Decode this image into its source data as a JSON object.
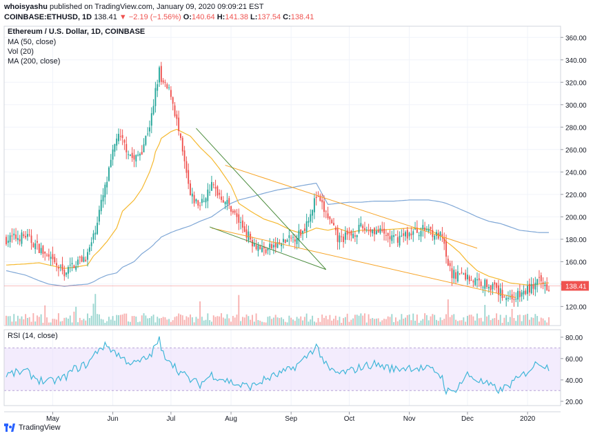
{
  "header": {
    "publisher": "whoisyashu",
    "published_text": "published on TradingView.com, January 09, 2020 09:09:21 EST",
    "symbol": "COINBASE:ETHUSD, 1D",
    "last": "138.41",
    "change": "−2.19 (−1.56%)",
    "open_label": "O:",
    "open": "140.64",
    "high_label": "H:",
    "high": "141.38",
    "low_label": "L:",
    "low": "137.54",
    "close_label": "C:",
    "close": "138.41"
  },
  "legend": {
    "title": "Ethereum / U.S. Dollar, 1D, COINBASE",
    "ma50": "MA (50, close)",
    "vol": "Vol (20)",
    "ma200": "MA (200, close)",
    "rsi": "RSI (14, close)"
  },
  "brand": "TradingView",
  "colors": {
    "up": "#26a69a",
    "down": "#ef5350",
    "ma50": "#f5b82e",
    "ma200": "#7fa7d6",
    "rsi_line": "#3fb6d8",
    "rsi_band": "#e9dcfb",
    "channel": "#f7a325",
    "wedge": "#4a8b3b"
  },
  "chart_data": {
    "type": "candlestick",
    "title": "Ethereum / U.S. Dollar, 1D, COINBASE",
    "x_ticks": [
      "May",
      "Jun",
      "Jul",
      "Aug",
      "Sep",
      "Oct",
      "Nov",
      "Dec",
      "2020"
    ],
    "x_tick_day_index": [
      24,
      55,
      85,
      116,
      147,
      177,
      208,
      238,
      269
    ],
    "price_axis": {
      "ylim": [
        103,
        370
      ],
      "ticks": [
        "120.00",
        "140.00",
        "160.00",
        "180.00",
        "200.00",
        "220.00",
        "240.00",
        "260.00",
        "280.00",
        "300.00",
        "320.00",
        "340.00",
        "360.00"
      ]
    },
    "rsi_axis": {
      "ylim": [
        16,
        87
      ],
      "ticks": [
        "20.00",
        "40.00",
        "60.00",
        "80.00"
      ],
      "band": [
        30,
        70
      ]
    },
    "last_price_label": "138.41",
    "anchors": {
      "day_index": [
        0,
        10,
        17,
        22,
        30,
        35,
        42,
        45,
        48,
        52,
        57,
        60,
        66,
        70,
        74,
        76,
        77,
        79,
        80,
        85,
        88,
        95,
        100,
        106,
        110,
        116,
        120,
        127,
        133,
        140,
        147,
        153,
        160,
        166,
        171,
        177,
        183,
        190,
        200,
        208,
        218,
        222,
        225,
        227,
        230,
        234,
        238,
        243,
        249,
        255,
        260,
        265,
        270,
        275,
        279
      ],
      "close": [
        180,
        183,
        172,
        162,
        150,
        158,
        166,
        182,
        205,
        232,
        272,
        267,
        250,
        260,
        282,
        297,
        312,
        330,
        320,
        310,
        285,
        218,
        210,
        228,
        220,
        208,
        196,
        178,
        170,
        175,
        180,
        187,
        218,
        200,
        180,
        183,
        190,
        188,
        180,
        185,
        190,
        183,
        182,
        162,
        148,
        150,
        146,
        142,
        140,
        132,
        128,
        130,
        136,
        142,
        138.41
      ],
      "ma50": [
        157,
        158,
        159,
        157,
        154,
        155,
        157,
        165,
        170,
        178,
        190,
        205,
        215,
        225,
        240,
        250,
        258,
        265,
        270,
        276,
        278,
        272,
        262,
        252,
        243,
        228,
        212,
        204,
        198,
        194,
        188,
        185,
        190,
        188,
        190,
        186,
        188,
        188,
        189,
        190,
        189,
        185,
        182,
        178,
        174,
        168,
        160,
        152,
        147,
        144,
        141,
        140,
        139,
        140,
        141
      ],
      "ma200": [
        152,
        148,
        143,
        140,
        138,
        139,
        140,
        142,
        145,
        148,
        150,
        155,
        160,
        167,
        172,
        175,
        177,
        180,
        182,
        186,
        188,
        192,
        196,
        200,
        205,
        212,
        215,
        218,
        221,
        224,
        226,
        228,
        230,
        211,
        212,
        213,
        213,
        214,
        214,
        215,
        215,
        214,
        213,
        212,
        210,
        207,
        204,
        200,
        196,
        194,
        191,
        188,
        187,
        186,
        186
      ],
      "rsi": [
        45,
        48,
        40,
        38,
        42,
        50,
        55,
        62,
        70,
        72,
        65,
        60,
        55,
        58,
        62,
        68,
        72,
        78,
        66,
        58,
        50,
        40,
        36,
        45,
        42,
        38,
        35,
        34,
        40,
        45,
        50,
        58,
        72,
        50,
        46,
        48,
        52,
        55,
        50,
        52,
        50,
        48,
        42,
        30,
        28,
        36,
        45,
        40,
        35,
        30,
        36,
        42,
        50,
        57,
        52
      ]
    },
    "trendlines": [
      {
        "name": "descending channel upper",
        "points": [
          [
            "2019-07-23",
            246
          ],
          [
            "2019-11-30",
            172
          ]
        ]
      },
      {
        "name": "descending channel lower",
        "points": [
          [
            "2019-07-16",
            190
          ],
          [
            "2019-12-20",
            128
          ]
        ]
      },
      {
        "name": "falling wedge upper",
        "points": [
          [
            "2019-07-08",
            279
          ],
          [
            "2019-09-13",
            153
          ]
        ]
      },
      {
        "name": "falling wedge lower",
        "points": [
          [
            "2019-07-15",
            191
          ],
          [
            "2019-09-13",
            153
          ]
        ]
      }
    ]
  }
}
